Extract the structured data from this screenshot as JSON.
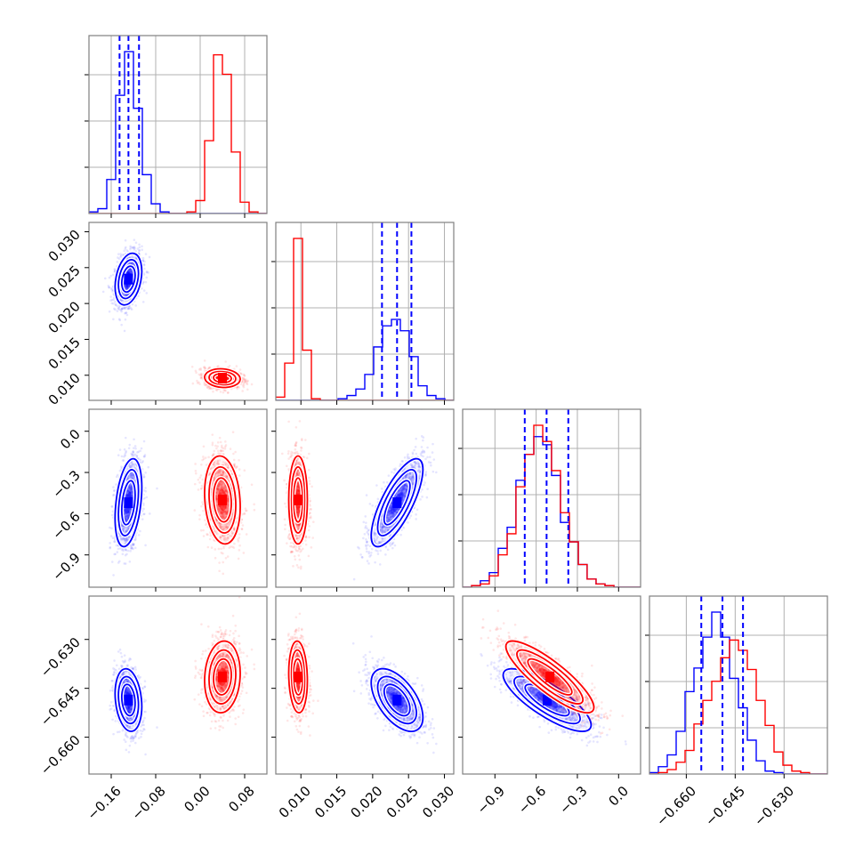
{
  "chart_data": {
    "type": "corner",
    "title": "",
    "colors": {
      "series_a": "#0000ff",
      "series_b": "#ff0000",
      "grid": "#b0b0b0",
      "frame": "#808080"
    },
    "series": [
      {
        "name": "blue",
        "color": "#0000ff"
      },
      {
        "name": "red",
        "color": "#ff0000"
      }
    ],
    "parameters": [
      {
        "index": 0,
        "range": [
          -0.2,
          0.12
        ],
        "ticks": [
          -0.16,
          -0.08,
          0.0,
          0.08
        ],
        "tick_labels": [
          "−0.16",
          "−0.08",
          "0.00",
          "0.08"
        ]
      },
      {
        "index": 1,
        "range": [
          0.0065,
          0.0313
        ],
        "ticks": [
          0.01,
          0.015,
          0.02,
          0.025,
          0.03
        ],
        "tick_labels": [
          "0.010",
          "0.015",
          "0.020",
          "0.025",
          "0.030"
        ]
      },
      {
        "index": 2,
        "range": [
          -1.135,
          0.16
        ],
        "ticks": [
          -0.9,
          -0.6,
          -0.3,
          0.0
        ],
        "tick_labels": [
          "−0.9",
          "−0.6",
          "−0.3",
          "0.0"
        ]
      },
      {
        "index": 3,
        "range": [
          -0.6713,
          -0.6167
        ],
        "ticks": [
          -0.66,
          -0.645,
          -0.63
        ],
        "tick_labels": [
          "−0.660",
          "−0.645",
          "−0.630"
        ]
      }
    ],
    "histograms": [
      {
        "param": 0,
        "bins": [
          -0.2,
          -0.184,
          -0.168,
          -0.152,
          -0.136,
          -0.12,
          -0.104,
          -0.088,
          -0.072,
          -0.056,
          -0.04,
          -0.024,
          -0.008,
          0.008,
          0.024,
          0.04,
          0.056,
          0.072,
          0.088,
          0.104,
          0.12
        ],
        "counts": {
          "blue": [
            0.01,
            0.03,
            0.21,
            0.73,
            1.0,
            0.65,
            0.24,
            0.06,
            0.01,
            0,
            0,
            0,
            0,
            0,
            0,
            0,
            0,
            0,
            0,
            0
          ],
          "red": [
            0,
            0,
            0,
            0,
            0,
            0,
            0,
            0,
            0,
            0,
            0,
            0.01,
            0.08,
            0.45,
            0.98,
            0.86,
            0.38,
            0.07,
            0.01,
            0
          ]
        },
        "quantiles_blue": [
          -0.145,
          -0.129,
          -0.11
        ]
      },
      {
        "param": 1,
        "bins": [
          0.0065,
          0.00774,
          0.00898,
          0.01022,
          0.01146,
          0.0127,
          0.01394,
          0.01518,
          0.01642,
          0.01766,
          0.0189,
          0.02014,
          0.02138,
          0.02262,
          0.02386,
          0.0251,
          0.02634,
          0.02758,
          0.02882,
          0.03006,
          0.0313
        ],
        "counts": {
          "blue": [
            0,
            0,
            0,
            0,
            0,
            0,
            0,
            0.01,
            0.03,
            0.07,
            0.16,
            0.33,
            0.46,
            0.5,
            0.43,
            0.27,
            0.09,
            0.03,
            0.01,
            0
          ],
          "red": [
            0.02,
            0.23,
            1.0,
            0.31,
            0.01,
            0,
            0,
            0,
            0,
            0,
            0,
            0,
            0,
            0,
            0,
            0,
            0,
            0,
            0,
            0
          ]
        },
        "quantiles_blue": [
          0.0213,
          0.0234,
          0.0254
        ]
      },
      {
        "param": 2,
        "bins": [
          -1.135,
          -1.07,
          -1.006,
          -0.941,
          -0.876,
          -0.811,
          -0.747,
          -0.682,
          -0.617,
          -0.552,
          -0.488,
          -0.423,
          -0.358,
          -0.293,
          -0.229,
          -0.164,
          -0.099,
          -0.034,
          0.031,
          0.095,
          0.16
        ],
        "counts": {
          "blue": [
            0,
            0.01,
            0.04,
            0.09,
            0.24,
            0.37,
            0.66,
            0.82,
            0.93,
            0.88,
            0.69,
            0.4,
            0.28,
            0.14,
            0.05,
            0.02,
            0.01,
            0,
            0,
            0
          ],
          "red": [
            0,
            0.01,
            0.02,
            0.07,
            0.2,
            0.33,
            0.62,
            0.82,
            1.0,
            0.9,
            0.72,
            0.46,
            0.28,
            0.14,
            0.05,
            0.02,
            0.01,
            0,
            0,
            0
          ]
        },
        "quantiles_blue": [
          -0.683,
          -0.524,
          -0.366
        ]
      },
      {
        "param": 3,
        "bins": [
          -0.6713,
          -0.66857,
          -0.66584,
          -0.66311,
          -0.66038,
          -0.65765,
          -0.65492,
          -0.65219,
          -0.64946,
          -0.64673,
          -0.644,
          -0.64127,
          -0.63854,
          -0.63581,
          -0.63308,
          -0.63035,
          -0.62762,
          -0.62489,
          -0.62216,
          -0.61943,
          -0.6167
        ],
        "counts": {
          "blue": [
            0.01,
            0.05,
            0.13,
            0.29,
            0.56,
            0.72,
            0.93,
            1.1,
            0.93,
            0.65,
            0.45,
            0.23,
            0.09,
            0.02,
            0.01,
            0,
            0,
            0,
            0,
            0
          ],
          "red": [
            0,
            0.01,
            0.03,
            0.08,
            0.16,
            0.34,
            0.5,
            0.63,
            0.79,
            0.91,
            0.84,
            0.71,
            0.5,
            0.33,
            0.15,
            0.06,
            0.02,
            0.01,
            0,
            0
          ]
        },
        "quantiles_blue": [
          -0.6554,
          -0.6489,
          -0.6426
        ]
      }
    ],
    "scatter_2d": [
      {
        "x_param": 0,
        "y_param": 1,
        "blue": {
          "mean": [
            -0.129,
            0.0234
          ],
          "sd": [
            0.012,
            0.0018
          ],
          "corr": 0.3
        },
        "red": {
          "mean": [
            0.04,
            0.0096
          ],
          "sd": [
            0.016,
            0.00065
          ],
          "corr": -0.1
        }
      },
      {
        "x_param": 0,
        "y_param": 2,
        "blue": {
          "mean": [
            -0.129,
            -0.52
          ],
          "sd": [
            0.012,
            0.16
          ],
          "corr": 0.35
        },
        "red": {
          "mean": [
            0.04,
            -0.5
          ],
          "sd": [
            0.016,
            0.16
          ],
          "corr": -0.15
        }
      },
      {
        "x_param": 1,
        "y_param": 2,
        "blue": {
          "mean": [
            0.0234,
            -0.52
          ],
          "sd": [
            0.0018,
            0.16
          ],
          "corr": 0.75
        },
        "red": {
          "mean": [
            0.0096,
            -0.5
          ],
          "sd": [
            0.00065,
            0.16
          ],
          "corr": 0.0
        }
      },
      {
        "x_param": 0,
        "y_param": 3,
        "blue": {
          "mean": [
            -0.129,
            -0.6486
          ],
          "sd": [
            0.012,
            0.0048
          ],
          "corr": -0.2
        },
        "red": {
          "mean": [
            0.04,
            -0.6415
          ],
          "sd": [
            0.016,
            0.0055
          ],
          "corr": 0.1
        }
      },
      {
        "x_param": 1,
        "y_param": 3,
        "blue": {
          "mean": [
            0.0234,
            -0.6486
          ],
          "sd": [
            0.0018,
            0.0048
          ],
          "corr": -0.55
        },
        "red": {
          "mean": [
            0.0096,
            -0.6415
          ],
          "sd": [
            0.00065,
            0.0055
          ],
          "corr": -0.1
        }
      },
      {
        "x_param": 2,
        "y_param": 3,
        "blue": {
          "mean": [
            -0.52,
            -0.6486
          ],
          "sd": [
            0.16,
            0.0048
          ],
          "corr": -0.8
        },
        "red": {
          "mean": [
            -0.5,
            -0.6415
          ],
          "sd": [
            0.16,
            0.0055
          ],
          "corr": -0.85
        }
      }
    ],
    "contour_levels_sigma": [
      0.5,
      1.0,
      1.5,
      2.0
    ],
    "grid": true,
    "legend": "none"
  }
}
